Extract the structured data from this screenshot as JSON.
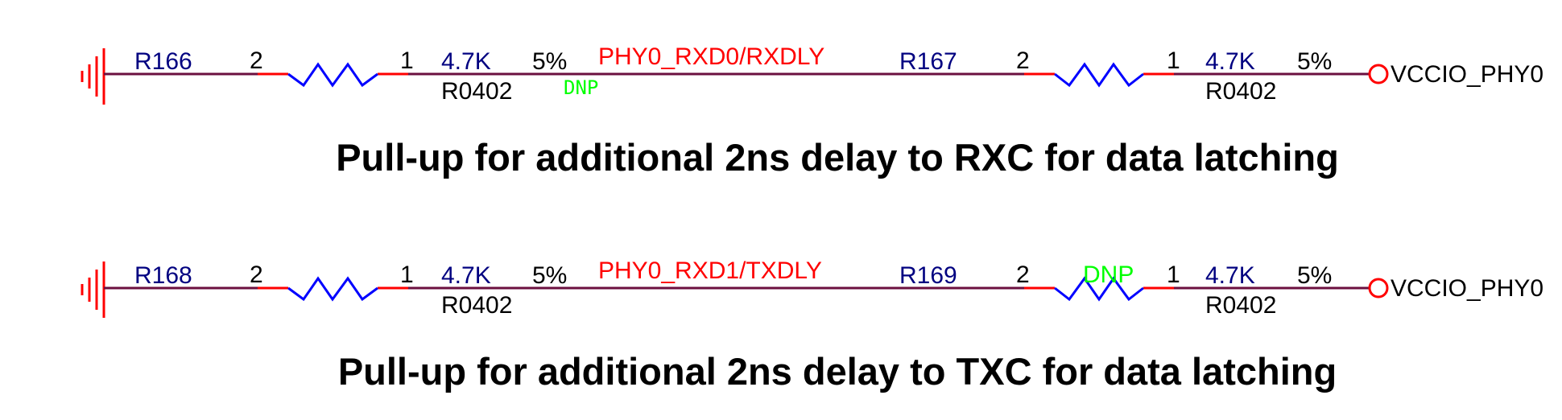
{
  "colors": {
    "wire": "#6b0f3f",
    "pin_stub": "#ff0000",
    "resistor": "#0000ff",
    "ground": "#ff0000",
    "net_label": "#ff0000",
    "refdes": "#000080",
    "dnp": "#00ff00",
    "power_port": "#ff0000"
  },
  "icons": {
    "ground": "ground-symbol-icon",
    "resistor": "resistor-zigzag-icon",
    "power": "power-port-circle-icon"
  },
  "rows": [
    {
      "left_resistor": {
        "ref": "R166",
        "pin_left": "2",
        "pin_right": "1",
        "value": "4.7K",
        "tolerance": "5%",
        "footprint": "R0402",
        "dnp": "DNP"
      },
      "net_label": "PHY0_RXD0/RXDLY",
      "right_resistor": {
        "ref": "R167",
        "pin_left": "2",
        "pin_right": "1",
        "value": "4.7K",
        "tolerance": "5%",
        "footprint": "R0402",
        "dnp": ""
      },
      "power_net": "VCCIO_PHY0",
      "note": "Pull-up for additional 2ns delay to RXC for data latching"
    },
    {
      "left_resistor": {
        "ref": "R168",
        "pin_left": "2",
        "pin_right": "1",
        "value": "4.7K",
        "tolerance": "5%",
        "footprint": "R0402",
        "dnp": ""
      },
      "net_label": "PHY0_RXD1/TXDLY",
      "right_resistor": {
        "ref": "R169",
        "pin_left": "2",
        "pin_right": "1",
        "value": "4.7K",
        "tolerance": "5%",
        "footprint": "R0402",
        "dnp": "DNP"
      },
      "power_net": "VCCIO_PHY0",
      "note": "Pull-up for additional 2ns delay to TXC for data latching"
    }
  ]
}
